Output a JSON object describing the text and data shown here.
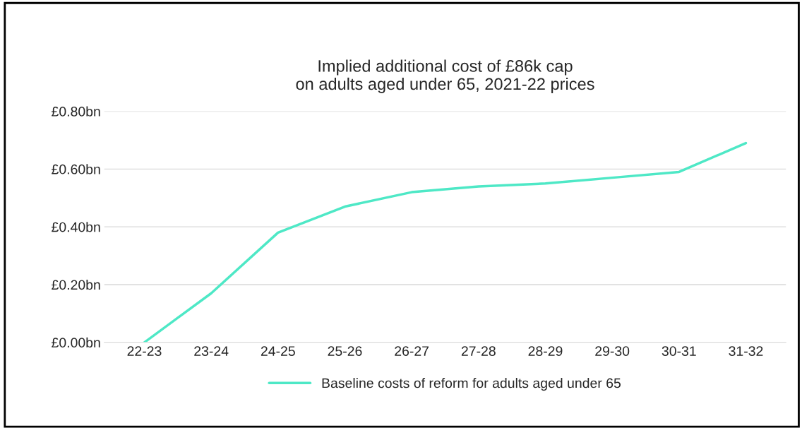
{
  "chart_data": {
    "type": "line",
    "title": "Implied additional cost of £86k cap\non adults aged under 65, 2021-22 prices",
    "categories": [
      "22-23",
      "23-24",
      "24-25",
      "25-26",
      "26-27",
      "27-28",
      "28-29",
      "29-30",
      "30-31",
      "31-32"
    ],
    "series": [
      {
        "name": "Baseline costs of reform for adults aged under 65",
        "color": "#4ee8c6",
        "values": [
          0.0,
          0.17,
          0.38,
          0.47,
          0.52,
          0.54,
          0.55,
          0.57,
          0.59,
          0.69
        ]
      }
    ],
    "ylim": [
      0,
      0.8
    ],
    "yticks": [
      {
        "value": 0,
        "label": "£0.00bn"
      },
      {
        "value": 0.2,
        "label": "£0.20bn"
      },
      {
        "value": 0.4,
        "label": "£0.40bn"
      },
      {
        "value": 0.6,
        "label": "£0.60bn"
      },
      {
        "value": 0.8,
        "label": "£0.80bn"
      }
    ],
    "grid": "y",
    "legend": "bottom",
    "marker": "none",
    "line_style": "solid"
  }
}
